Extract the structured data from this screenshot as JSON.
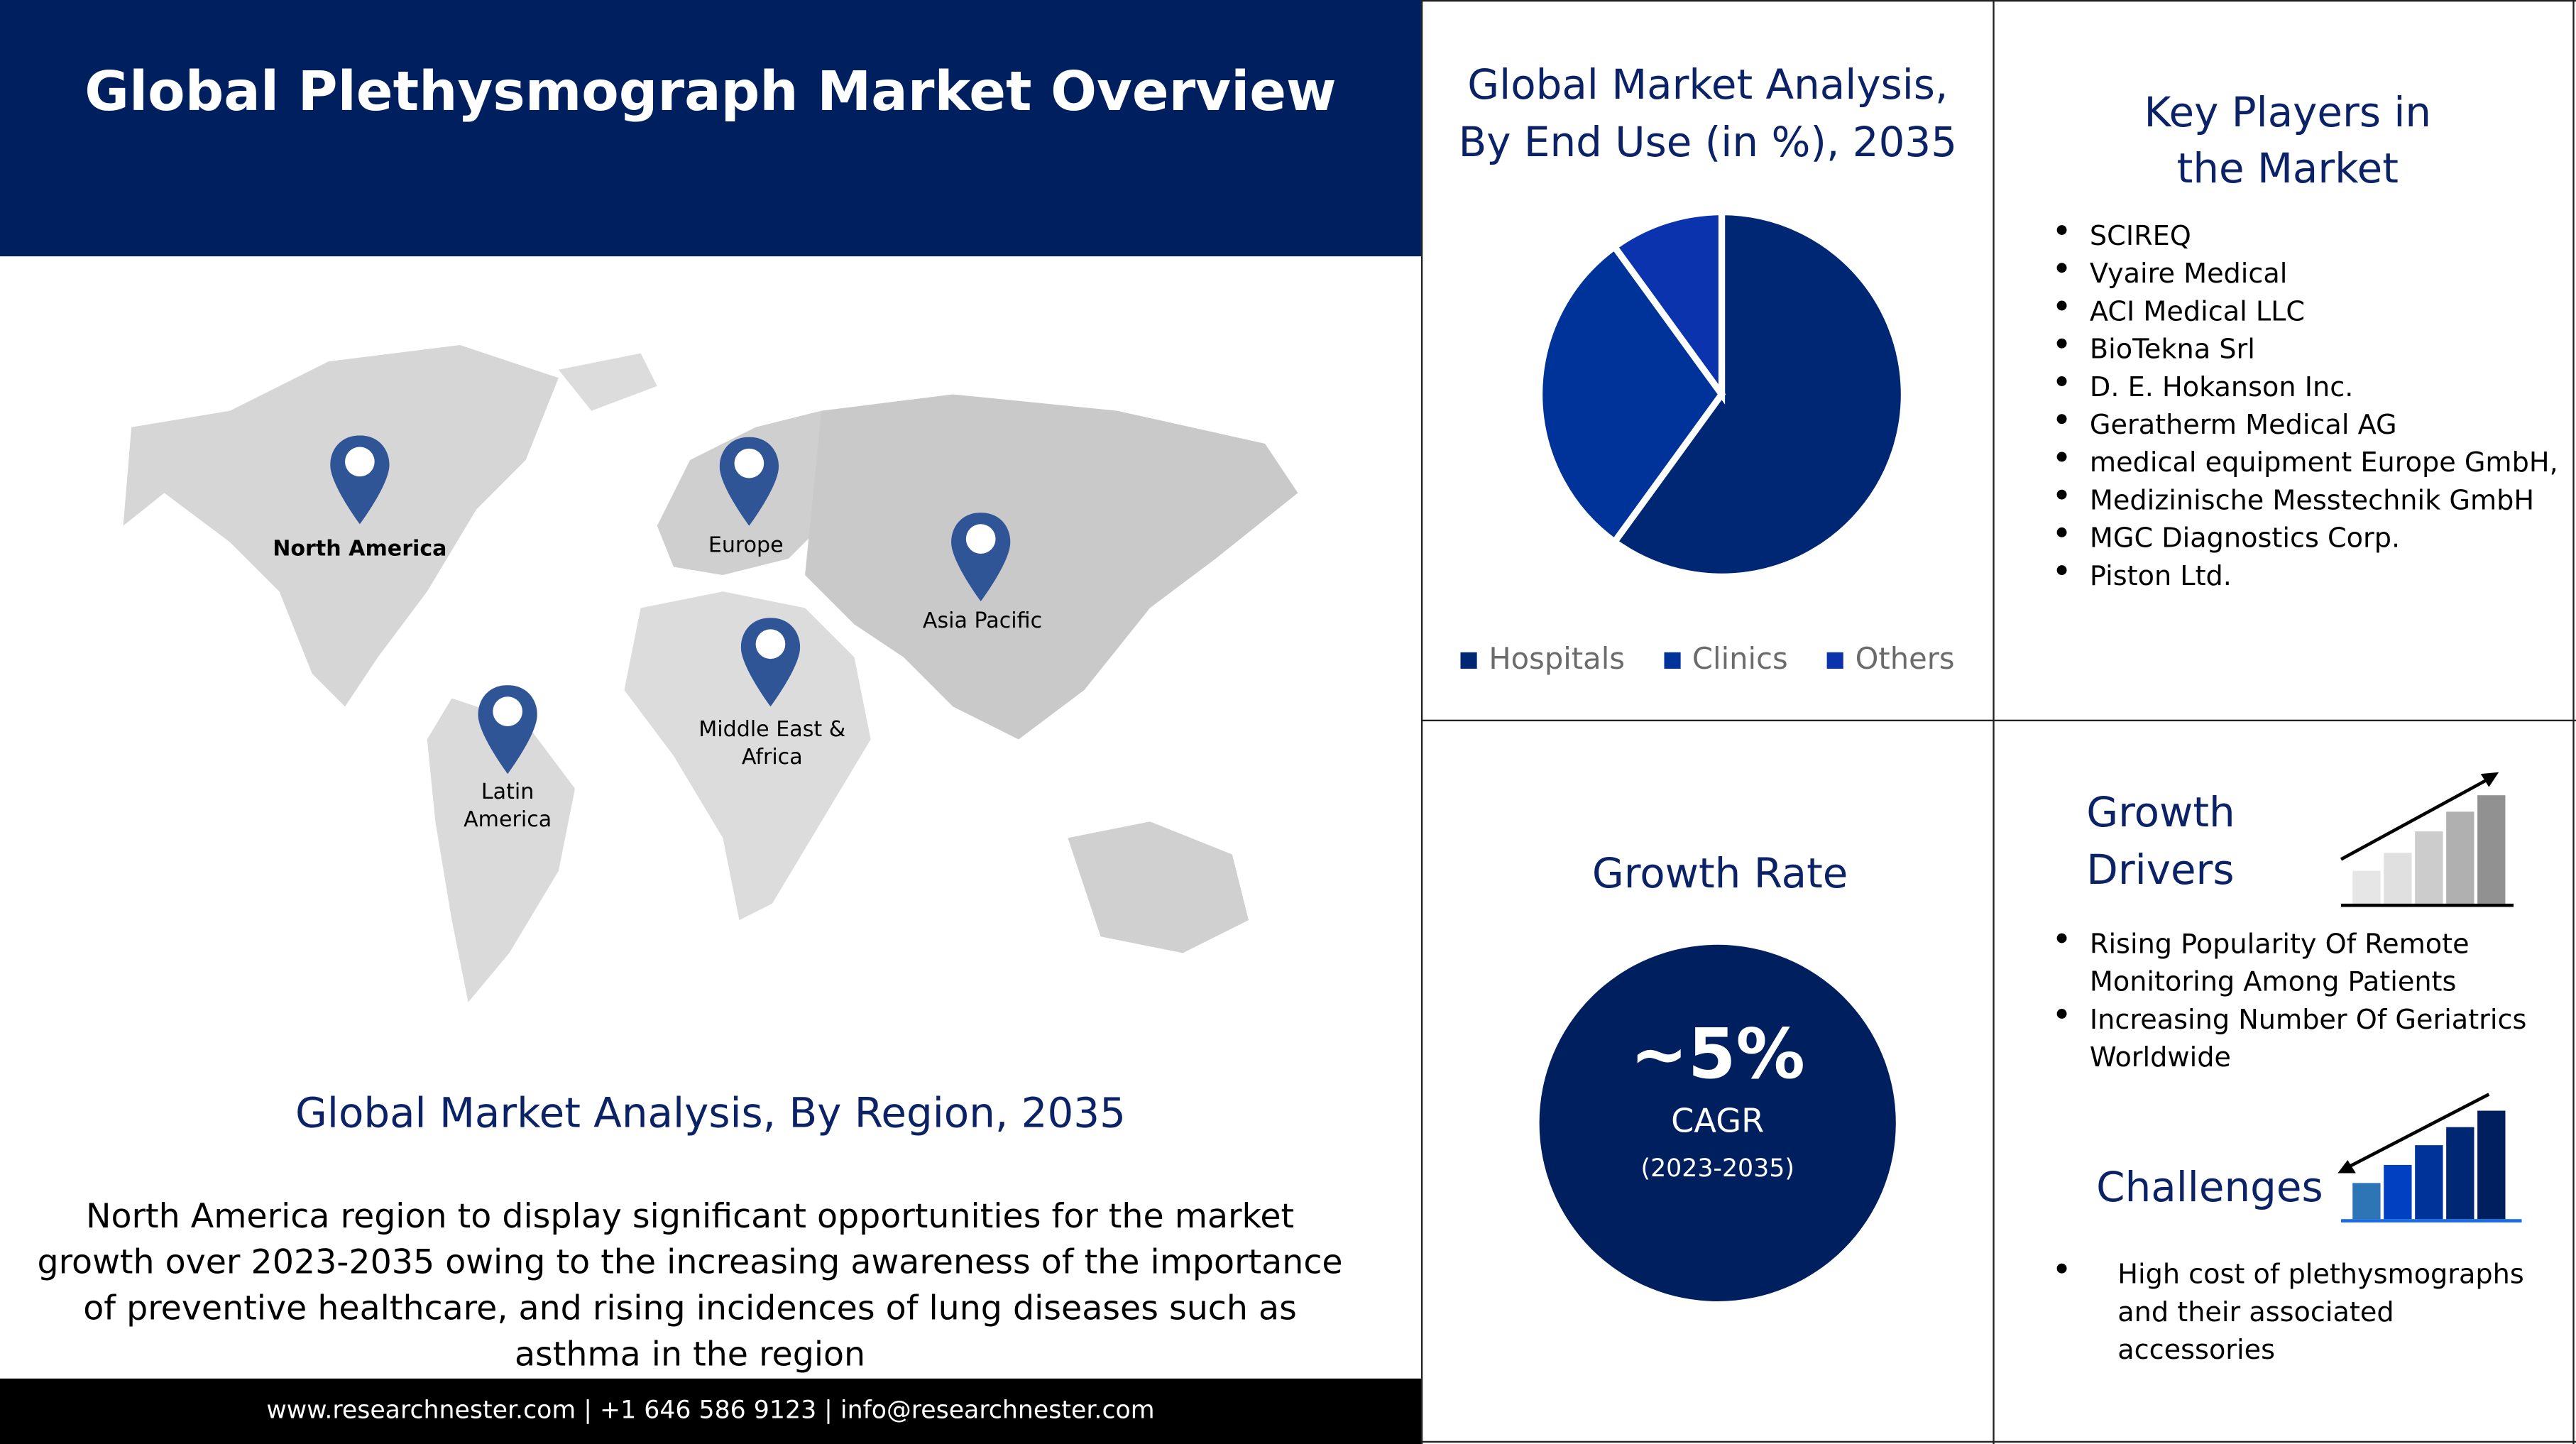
{
  "header": {
    "title": "Global Plethysmograph Market Overview"
  },
  "map": {
    "regions": [
      {
        "name": "North America",
        "bold": true
      },
      {
        "name": "Europe"
      },
      {
        "name": "Asia Pacific"
      },
      {
        "name": "Middle East & Africa"
      },
      {
        "name": "Latin America"
      }
    ],
    "pin_color": "#2f5597",
    "title": "Global Market Analysis, By Region, 2035",
    "description": "North America region to display significant opportunities for the market growth over 2023-2035 owing to the increasing awareness of the importance of preventive healthcare, and rising incidences of lung diseases such as asthma in the region"
  },
  "footer": {
    "text": "www.researchnester.com | +1 646 586 9123 | info@researchnester.com"
  },
  "chart_data": {
    "type": "pie",
    "title": "Global Market Analysis, By End Use (in %), 2035",
    "categories": [
      "Hospitals",
      "Clinics",
      "Others"
    ],
    "values": [
      60,
      30,
      10
    ],
    "colors": [
      "#002774",
      "#003399",
      "#0b33ad"
    ],
    "legend": "bottom"
  },
  "key_players": {
    "title": "Key Players in the Market",
    "items": [
      "SCIREQ",
      "Vyaire Medical",
      "ACI Medical LLC",
      "BioTekna Srl",
      "D. E. Hokanson Inc.",
      "Geratherm Medical AG",
      "medical equipment Europe GmbH,",
      "Medizinische Messtechnik GmbH",
      "MGC Diagnostics Corp.",
      "Piston Ltd."
    ]
  },
  "growth_rate": {
    "title": "Growth Rate",
    "value": "~5%",
    "label": "CAGR",
    "period": "(2023-2035)"
  },
  "growth_drivers": {
    "title": "Growth Drivers",
    "items": [
      "Rising Popularity Of Remote Monitoring Among Patients",
      "Increasing Number Of Geriatrics Worldwide"
    ]
  },
  "challenges": {
    "title": "Challenges",
    "items": [
      "High cost of plethysmographs and their associated accessories"
    ]
  }
}
